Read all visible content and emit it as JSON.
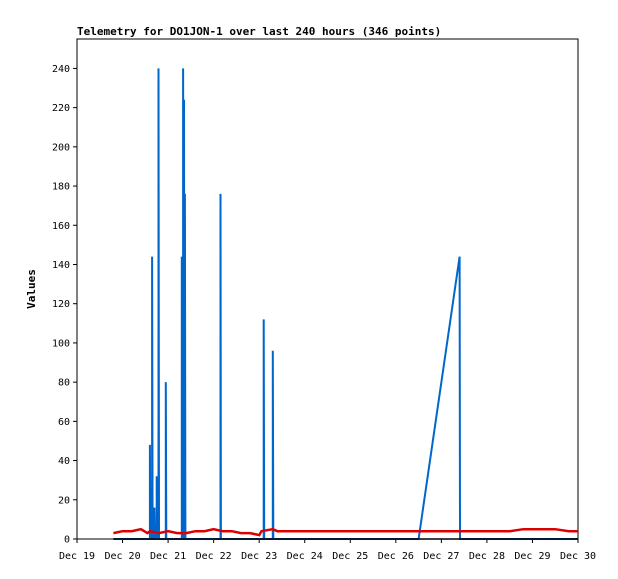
{
  "chart_data": {
    "type": "line",
    "title": "Telemetry for DO1JON-1 over last 240 hours (346 points)",
    "xlabel": "",
    "ylabel": "Values",
    "x_unit": "days",
    "x_tick_labels": [
      "Dec 19",
      "Dec 20",
      "Dec 21",
      "Dec 22",
      "Dec 23",
      "Dec 24",
      "Dec 25",
      "Dec 26",
      "Dec 27",
      "Dec 28",
      "Dec 29",
      "Dec 30"
    ],
    "xlim": [
      0,
      11
    ],
    "ylim": [
      0,
      255
    ],
    "y_ticks": [
      0,
      20,
      40,
      60,
      80,
      100,
      120,
      140,
      160,
      180,
      200,
      220,
      240
    ],
    "grid": false,
    "legend": "none",
    "series": [
      {
        "color": "#0066cc",
        "x": [
          0.8,
          1.6,
          1.6,
          1.61,
          1.65,
          1.65,
          1.66,
          1.7,
          1.7,
          1.71,
          1.75,
          1.75,
          1.76,
          1.79,
          1.79,
          1.8,
          1.95,
          1.95,
          1.96,
          2.3,
          2.3,
          2.31,
          2.33,
          2.33,
          2.34,
          2.35,
          2.35,
          2.36,
          2.37,
          2.37,
          2.38,
          3.15,
          3.15,
          3.16,
          4.1,
          4.1,
          4.11,
          4.3,
          4.3,
          4.31,
          7.5,
          8.4,
          8.4,
          8.41,
          11
        ],
        "y": [
          0,
          0,
          48,
          0,
          0,
          144,
          0,
          0,
          16,
          0,
          0,
          32,
          0,
          0,
          240,
          0,
          0,
          80,
          0,
          0,
          144,
          0,
          0,
          240,
          0,
          0,
          224,
          0,
          0,
          176,
          0,
          0,
          176,
          0,
          0,
          112,
          0,
          0,
          96,
          0,
          0,
          144,
          144,
          0,
          0
        ]
      },
      {
        "color": "#dd0000",
        "x": [
          0.8,
          1.0,
          1.2,
          1.4,
          1.55,
          1.6,
          1.8,
          2.0,
          2.2,
          2.4,
          2.6,
          2.8,
          3.0,
          3.2,
          3.4,
          3.6,
          3.8,
          4.0,
          4.05,
          4.3,
          4.4,
          5.0,
          6.0,
          7.0,
          7.5,
          8.0,
          8.5,
          8.8,
          9.2,
          9.5,
          9.8,
          10.2,
          10.5,
          10.8,
          10.9,
          11.0
        ],
        "y": [
          3,
          4,
          4,
          5,
          3,
          4,
          3,
          4,
          3,
          3,
          4,
          4,
          5,
          4,
          4,
          3,
          3,
          2,
          4,
          5,
          4,
          4,
          4,
          4,
          4,
          4,
          4,
          4,
          4,
          4,
          5,
          5,
          5,
          4,
          4,
          4
        ]
      }
    ]
  }
}
